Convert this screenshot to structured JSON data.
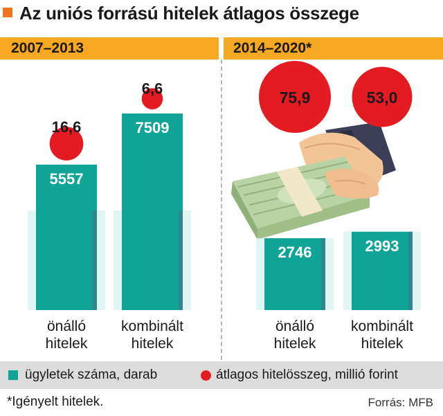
{
  "header": {
    "title": "Az uniós forrású hitelek átlagos összege"
  },
  "colors": {
    "accent_square": "#f0731e",
    "period_bar": "#f7a823",
    "bar": "#0fa496",
    "bar_shadow": "#d9f4f1",
    "dot": "#e41b23",
    "legend_bg": "#dcdcdc"
  },
  "chart_data": {
    "type": "bar",
    "title": "Az uniós forrású hitelek átlagos összege",
    "panels": [
      {
        "period": "2007–2013",
        "categories": [
          {
            "line1": "önálló",
            "line2": "hitelek"
          },
          {
            "line1": "kombinált",
            "line2": "hitelek"
          }
        ],
        "bar_values": [
          5557,
          7509
        ],
        "bar_labels": [
          "5557",
          "7509"
        ],
        "dot_values": [
          16.6,
          6.6
        ],
        "dot_labels": [
          "16,6",
          "6,6"
        ]
      },
      {
        "period": "2014–2020*",
        "categories": [
          {
            "line1": "önálló",
            "line2": "hitelek"
          },
          {
            "line1": "kombinált",
            "line2": "hitelek"
          }
        ],
        "bar_values": [
          2746,
          2993
        ],
        "bar_labels": [
          "2746",
          "2993"
        ],
        "dot_values": [
          75.9,
          53.0
        ],
        "dot_labels": [
          "75,9",
          "53,0"
        ]
      }
    ],
    "series": [
      {
        "name": "ügyletek száma, darab",
        "kind": "bar"
      },
      {
        "name": "átlagos hitelösszeg, millió forint",
        "kind": "circle"
      }
    ],
    "legend_position": "bottom"
  },
  "legend": {
    "bars_label": "ügyletek száma, darab",
    "dots_label": "átlagos hitelösszeg, millió forint"
  },
  "footnote": "*Igényelt hitelek.",
  "source": "Forrás: MFB",
  "illustration": {
    "icon": "hand-with-money-icon"
  }
}
